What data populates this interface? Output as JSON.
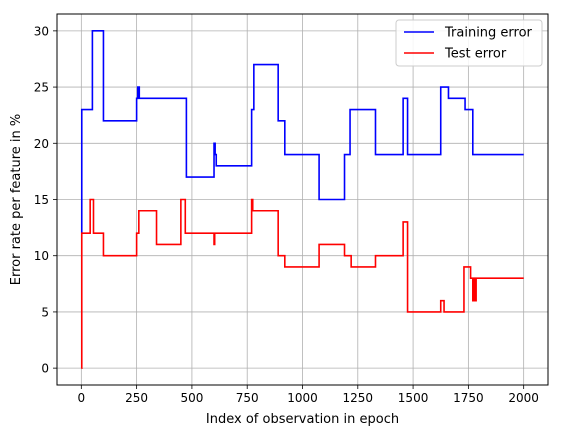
{
  "chart_data": {
    "type": "line",
    "title": "",
    "xlabel": "Index of observation in epoch",
    "ylabel": "Error rate per feature in %",
    "xlim": [
      -110,
      2110
    ],
    "ylim": [
      -1.5,
      31.5
    ],
    "xticks": [
      0,
      250,
      500,
      750,
      1000,
      1250,
      1500,
      1750,
      2000
    ],
    "yticks": [
      0,
      5,
      10,
      15,
      20,
      25,
      30
    ],
    "grid": true,
    "legend_position": "top-right",
    "series": [
      {
        "name": "Training error",
        "color": "#0000ff",
        "step": true,
        "x": [
          0,
          2,
          50,
          100,
          250,
          255,
          262,
          270,
          475,
          600,
          605,
          610,
          770,
          780,
          790,
          890,
          910,
          920,
          1075,
          1190,
          1210,
          1215,
          1330,
          1455,
          1475,
          1625,
          1640,
          1660,
          1735,
          1760,
          1770,
          2000
        ],
        "y": [
          12,
          23,
          30,
          22,
          24,
          25,
          24,
          24,
          17,
          20,
          19,
          18,
          23,
          27,
          27,
          22,
          22,
          19,
          15,
          19,
          19,
          23,
          19,
          24,
          19,
          25,
          25,
          24,
          23,
          23,
          19,
          19
        ]
      },
      {
        "name": "Test error",
        "color": "#ff0000",
        "step": true,
        "x": [
          0,
          2,
          10,
          40,
          55,
          100,
          250,
          260,
          270,
          340,
          450,
          470,
          600,
          603,
          610,
          770,
          775,
          780,
          790,
          890,
          905,
          920,
          1075,
          1190,
          1210,
          1220,
          1330,
          1455,
          1475,
          1625,
          1640,
          1730,
          1760,
          1770,
          1775,
          1782,
          1785,
          2000
        ],
        "y": [
          0,
          12,
          12,
          15,
          12,
          10,
          12,
          14,
          14,
          11,
          15,
          12,
          11,
          12,
          12,
          15,
          14,
          14,
          14,
          10,
          10,
          9,
          11,
          10,
          10,
          9,
          10,
          13,
          5,
          6,
          5,
          9,
          8,
          6,
          8,
          6,
          8,
          8
        ]
      }
    ]
  }
}
